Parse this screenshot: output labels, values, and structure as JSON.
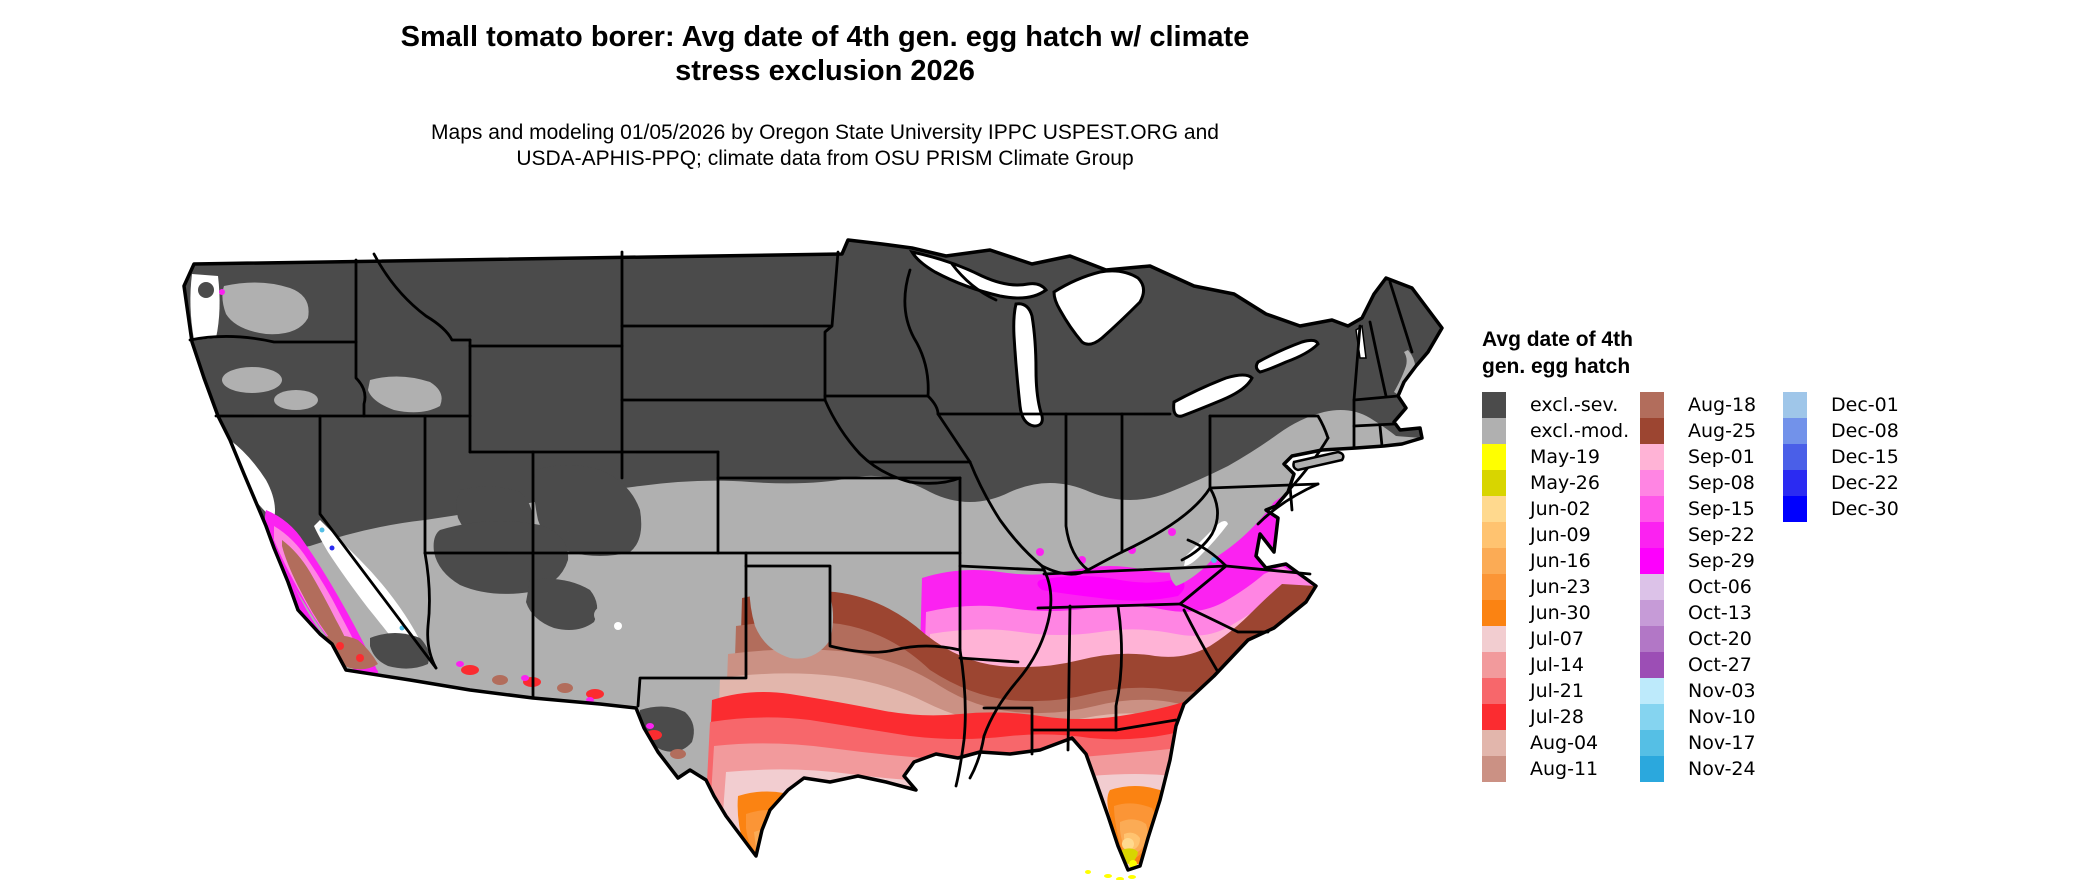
{
  "header": {
    "title_line1": "Small tomato borer: Avg date of 4th gen. egg hatch w/ climate",
    "title_line2": "stress exclusion 2026",
    "subtitle_line1": "Maps and modeling 01/05/2026 by Oregon State University IPPC USPEST.ORG and",
    "subtitle_line2": "USDA-APHIS-PPQ; climate data from OSU PRISM Climate Group"
  },
  "legend": {
    "title_line1": "Avg date of 4th",
    "title_line2": "gen. egg hatch",
    "columns": [
      {
        "entries": [
          {
            "label": "excl.-sev.",
            "key": "excl_sev",
            "color": "#4b4b4b"
          },
          {
            "label": "excl.-mod.",
            "key": "excl_mod",
            "color": "#b0b0b0"
          },
          {
            "label": "May-19",
            "key": "may19",
            "color": "#ffff00"
          },
          {
            "label": "May-26",
            "key": "may26",
            "color": "#d8d500"
          },
          {
            "label": "Jun-02",
            "key": "jun02",
            "color": "#ffd98e"
          },
          {
            "label": "Jun-09",
            "key": "jun09",
            "color": "#ffc370"
          },
          {
            "label": "Jun-16",
            "key": "jun16",
            "color": "#fbab55"
          },
          {
            "label": "Jun-23",
            "key": "jun23",
            "color": "#fb9536"
          },
          {
            "label": "Jun-30",
            "key": "jun30",
            "color": "#fb8312"
          },
          {
            "label": "Jul-07",
            "key": "jul07",
            "color": "#f2cdd0"
          },
          {
            "label": "Jul-14",
            "key": "jul14",
            "color": "#f29a9c"
          },
          {
            "label": "Jul-21",
            "key": "jul21",
            "color": "#f7676b"
          },
          {
            "label": "Jul-28",
            "key": "jul28",
            "color": "#fb2c30"
          },
          {
            "label": "Aug-04",
            "key": "aug04",
            "color": "#e2b6ac"
          },
          {
            "label": "Aug-11",
            "key": "aug11",
            "color": "#cb9184"
          }
        ]
      },
      {
        "entries": [
          {
            "label": "Aug-18",
            "key": "aug18",
            "color": "#b26d5c"
          },
          {
            "label": "Aug-25",
            "key": "aug25",
            "color": "#9c4531"
          },
          {
            "label": "Sep-01",
            "key": "sep01",
            "color": "#ffb3d6"
          },
          {
            "label": "Sep-08",
            "key": "sep08",
            "color": "#ff85e3"
          },
          {
            "label": "Sep-15",
            "key": "sep15",
            "color": "#ff57e9"
          },
          {
            "label": "Sep-22",
            "key": "sep22",
            "color": "#fb22f1"
          },
          {
            "label": "Sep-29",
            "key": "sep29",
            "color": "#fd00fd"
          },
          {
            "label": "Oct-06",
            "key": "oct06",
            "color": "#dcc2e8"
          },
          {
            "label": "Oct-13",
            "key": "oct13",
            "color": "#c69bd7"
          },
          {
            "label": "Oct-20",
            "key": "oct20",
            "color": "#b277c6"
          },
          {
            "label": "Oct-27",
            "key": "oct27",
            "color": "#9c4eb5"
          },
          {
            "label": "Nov-03",
            "key": "nov03",
            "color": "#bdeafb"
          },
          {
            "label": "Nov-10",
            "key": "nov10",
            "color": "#85d4f0"
          },
          {
            "label": "Nov-17",
            "key": "nov17",
            "color": "#55bfe5"
          },
          {
            "label": "Nov-24",
            "key": "nov24",
            "color": "#2ba8dd"
          }
        ]
      },
      {
        "entries": [
          {
            "label": "Dec-01",
            "key": "dec01",
            "color": "#9fc6e9"
          },
          {
            "label": "Dec-08",
            "key": "dec08",
            "color": "#7292ea"
          },
          {
            "label": "Dec-15",
            "key": "dec15",
            "color": "#4a5fe8"
          },
          {
            "label": "Dec-22",
            "key": "dec22",
            "color": "#2b2bf2"
          },
          {
            "label": "Dec-30",
            "key": "dec30",
            "color": "#0000fe"
          }
        ]
      }
    ]
  },
  "palette": {
    "excl_sev": "#4b4b4b",
    "excl_mod": "#b0b0b0",
    "white": "#ffffff",
    "may19": "#ffff00",
    "may26": "#d8d500",
    "jun02": "#ffd98e",
    "jun09": "#ffc370",
    "jun16": "#fbab55",
    "jun23": "#fb9536",
    "jun30": "#fb8312",
    "jul07": "#f2cdd0",
    "jul14": "#f29a9c",
    "jul21": "#f7676b",
    "jul28": "#fb2c30",
    "aug04": "#e2b6ac",
    "aug11": "#cb9184",
    "aug18": "#b26d5c",
    "aug25": "#9c4531",
    "sep01": "#ffb3d6",
    "sep08": "#ff85e3",
    "sep15": "#ff57e9",
    "sep22": "#fb22f1",
    "sep29": "#fd00fd",
    "oct20": "#b277c6",
    "nov17": "#55bfe5",
    "dec22": "#2b2bf2"
  },
  "map_data": {
    "type": "choropleth-map",
    "region": "Contiguous United States",
    "variable": "Average date of 4th generation egg hatch (with climate stress exclusion), 2026",
    "bands_north_to_south": [
      {
        "area": "Northern states (PNW, Rockies, northern plains, Great Lakes, New England)",
        "value": "excl.-sev."
      },
      {
        "area": "Central plains, lower Midwest, Pennsylvania, southern New England coast",
        "value": "excl.-mod."
      },
      {
        "area": "Kentucky, southern Missouri, Virginia, Delmarva, southern New Jersey",
        "value": "Sep-22 to Sep-29"
      },
      {
        "area": "Northern Arkansas, middle Tennessee fringe",
        "value": "Sep-01 to Sep-08"
      },
      {
        "area": "Oklahoma, Arkansas, Tennessee, northern MS/AL/GA, Carolinas, California Central Valley",
        "value": "Aug-18 to Aug-25"
      },
      {
        "area": "North-central Texas, central MS/AL/GA, coastal Carolinas",
        "value": "Aug-04 to Aug-11"
      },
      {
        "area": "Central Texas, northern Louisiana, southern MS/AL/GA",
        "value": "Jul-21 to Jul-28"
      },
      {
        "area": "Gulf coastal plain, north Florida",
        "value": "Jul-07 to Jul-14"
      },
      {
        "area": "South Texas, Florida peninsula",
        "value": "Jun-09 to Jun-30"
      },
      {
        "area": "Southern tip of Florida and Keys",
        "value": "May-19 to May-26"
      }
    ]
  }
}
